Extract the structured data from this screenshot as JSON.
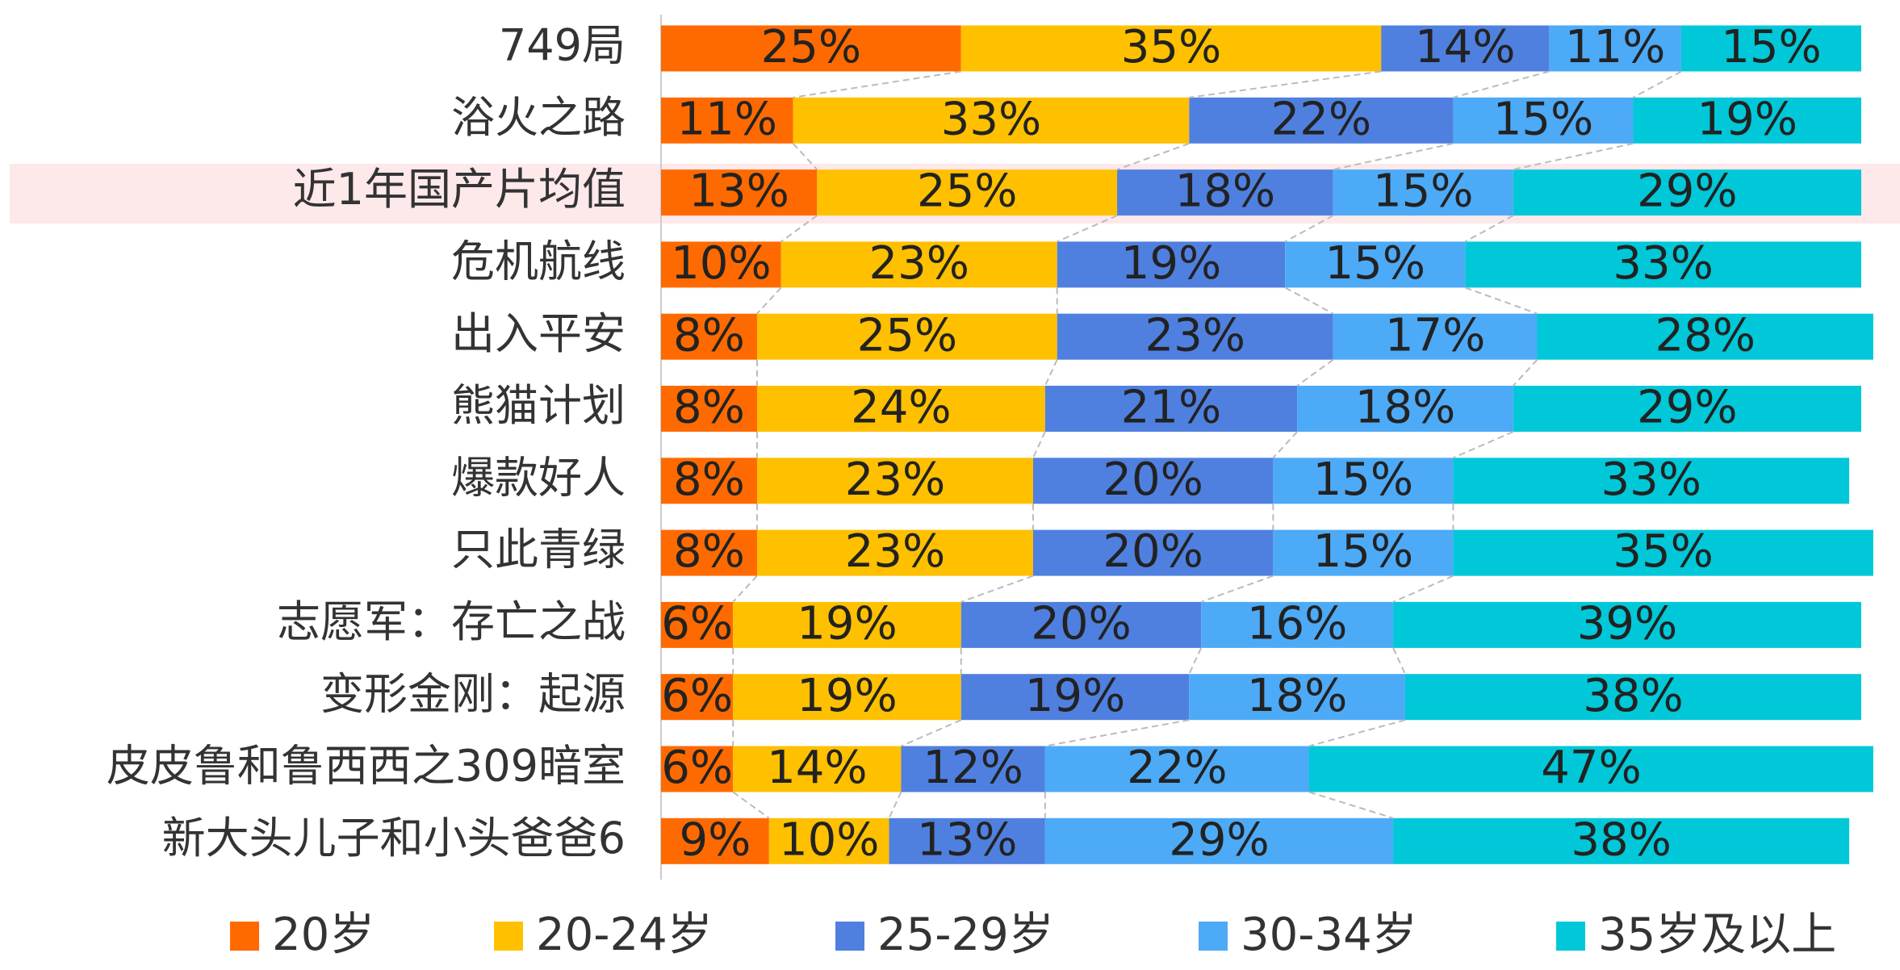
{
  "chart_data": {
    "type": "stacked_barh",
    "categories": [
      "749局",
      "浴火之路",
      "近1年国产片均值",
      "危机航线",
      "出入平安",
      "熊猫计划",
      "爆款好人",
      "只此青绿",
      "志愿军：存亡之战",
      "变形金刚：起源",
      "皮皮鲁和鲁西西之309暗室",
      "新大头儿子和小头爸爸6"
    ],
    "xlim": [
      0,
      100
    ],
    "series": [
      {
        "name": "20岁",
        "color": "#ff6a00",
        "values": [
          25,
          11,
          13,
          10,
          8,
          8,
          8,
          8,
          6,
          6,
          6,
          9
        ],
        "value_labels": [
          "25%",
          "11%",
          "13%",
          "10%",
          "8%",
          "8%",
          "8%",
          "8%",
          "6%",
          "6%",
          "6%",
          "9%"
        ]
      },
      {
        "name": "20-24岁",
        "color": "#ffc000",
        "values": [
          35,
          33,
          25,
          23,
          25,
          24,
          23,
          23,
          19,
          19,
          14,
          10
        ],
        "value_labels": [
          "35%",
          "33%",
          "25%",
          "23%",
          "25%",
          "24%",
          "23%",
          "23%",
          "19%",
          "19%",
          "14%",
          "10%"
        ]
      },
      {
        "name": "25-29岁",
        "color": "#4f80e0",
        "values": [
          14,
          22,
          18,
          19,
          23,
          21,
          20,
          20,
          20,
          19,
          12,
          13
        ],
        "value_labels": [
          "14%",
          "22%",
          "18%",
          "19%",
          "23%",
          "21%",
          "20%",
          "20%",
          "20%",
          "19%",
          "12%",
          "13%"
        ]
      },
      {
        "name": "30-34岁",
        "color": "#4daaf7",
        "values": [
          11,
          15,
          15,
          15,
          17,
          18,
          15,
          15,
          16,
          18,
          22,
          29
        ],
        "value_labels": [
          "11%",
          "15%",
          "15%",
          "15%",
          "17%",
          "18%",
          "15%",
          "15%",
          "16%",
          "18%",
          "22%",
          "29%"
        ]
      },
      {
        "name": "35岁及以上",
        "color": "#00c8d8",
        "values": [
          15,
          19,
          29,
          33,
          28,
          29,
          33,
          35,
          39,
          38,
          47,
          38
        ],
        "value_labels": [
          "15%",
          "19%",
          "29%",
          "33%",
          "28%",
          "29%",
          "33%",
          "35%",
          "39%",
          "38%",
          "47%",
          "38%"
        ]
      }
    ]
  }
}
